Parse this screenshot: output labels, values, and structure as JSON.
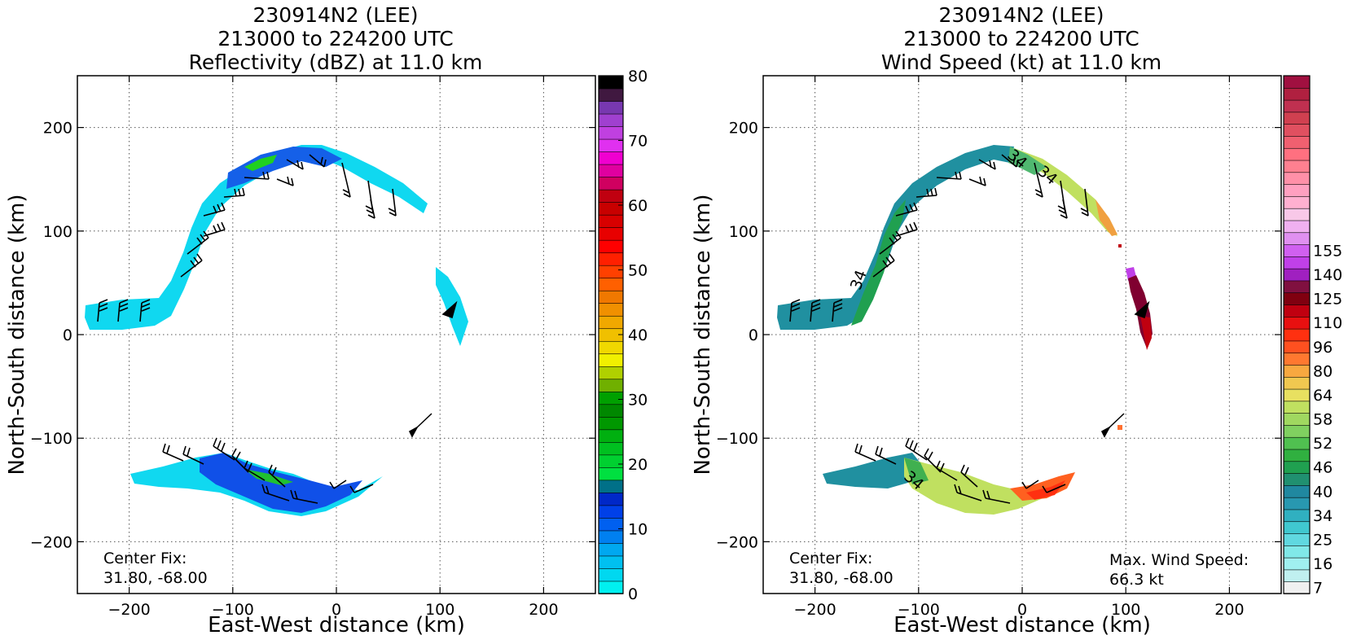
{
  "chart_data": [
    {
      "type": "heatmap",
      "title_lines": [
        "230914N2 (LEE)",
        "213000 to 224200 UTC",
        "Reflectivity (dBZ) at 11.0 km"
      ],
      "xlabel": "East-West distance (km)",
      "ylabel": "North-South distance (km)",
      "xlim": [
        -250,
        250
      ],
      "ylim": [
        -250,
        250
      ],
      "xticks": [
        -200,
        -100,
        0,
        100,
        200
      ],
      "yticks": [
        -200,
        -100,
        0,
        100,
        200
      ],
      "xtick_labels": [
        "−200",
        "−100",
        "0",
        "100",
        "200"
      ],
      "ytick_labels": [
        "−200",
        "−100",
        "0",
        "100",
        "200"
      ],
      "grid": "dotted",
      "annotation_lines": [
        "Center Fix:",
        "31.80, -68.00"
      ],
      "colorbar": {
        "min": 0,
        "max": 80,
        "ticks": [
          0,
          10,
          20,
          30,
          40,
          50,
          60,
          70,
          80
        ],
        "tick_labels": [
          "0",
          "10",
          "20",
          "30",
          "40",
          "50",
          "60",
          "70",
          "80"
        ],
        "colors": [
          "#00f0f0",
          "#00d8f0",
          "#00c0f0",
          "#00a8f0",
          "#0080f0",
          "#0060f0",
          "#0040e8",
          "#0028c8",
          "#007088",
          "#00e040",
          "#00d030",
          "#00c020",
          "#00b010",
          "#009800",
          "#008800",
          "#00a000",
          "#70b000",
          "#b0d000",
          "#f0f000",
          "#f0d800",
          "#f0c000",
          "#f0a800",
          "#f09000",
          "#f07800",
          "#ff6000",
          "#ff4000",
          "#ff2000",
          "#ff0000",
          "#e80000",
          "#d80000",
          "#c80000",
          "#c00010",
          "#d00060",
          "#e000a0",
          "#f000d0",
          "#e030f0",
          "#c040e0",
          "#a040d0",
          "#7838b0",
          "#401840",
          "#000000"
        ]
      },
      "wind_barbs": true
    },
    {
      "type": "heatmap",
      "title_lines": [
        "230914N2 (LEE)",
        "213000 to 224200 UTC",
        "Wind Speed (kt) at 11.0 km"
      ],
      "xlabel": "East-West distance (km)",
      "ylabel": "North-South distance (km)",
      "xlim": [
        -250,
        250
      ],
      "ylim": [
        -250,
        250
      ],
      "xticks": [
        -200,
        -100,
        0,
        100,
        200
      ],
      "yticks": [
        -200,
        -100,
        0,
        100,
        200
      ],
      "xtick_labels": [
        "−200",
        "−100",
        "0",
        "100",
        "200"
      ],
      "ytick_labels": [
        "−200",
        "−100",
        "0",
        "100",
        "200"
      ],
      "grid": "dotted",
      "annotation_lines": [
        "Center Fix:",
        "31.80, -68.00"
      ],
      "max_annotation_lines": [
        "Max. Wind Speed:",
        "66.3 kt"
      ],
      "contour_label": "34",
      "colorbar": {
        "tick_labels": [
          "7",
          "16",
          "25",
          "34",
          "40",
          "46",
          "52",
          "58",
          "64",
          "80",
          "96",
          "110",
          "125",
          "140",
          "155"
        ],
        "label_steps": [
          0,
          2,
          4,
          6,
          8,
          10,
          12,
          14,
          16,
          18,
          20,
          22,
          24,
          26,
          28
        ],
        "colors": [
          "#f0f0f0",
          "#c0f0f0",
          "#a0f0f0",
          "#80e8e8",
          "#60d8e0",
          "#40c8d0",
          "#30b0c0",
          "#2898b0",
          "#2088a0",
          "#209070",
          "#20a050",
          "#30b040",
          "#50c050",
          "#80d060",
          "#a0d860",
          "#c0e060",
          "#e8e060",
          "#f0c850",
          "#f8a840",
          "#ff7830",
          "#ff5020",
          "#ff3010",
          "#e81010",
          "#c00010",
          "#800010",
          "#801040",
          "#a020c0",
          "#c040e8",
          "#d060f0",
          "#e090f0",
          "#f0b0f0",
          "#f8c8e8",
          "#ffb0d0",
          "#ffa0c0",
          "#ff90a8",
          "#ff8090",
          "#ff7080",
          "#f06070",
          "#e05060",
          "#d04050",
          "#c03050",
          "#b02040",
          "#a01040"
        ]
      },
      "wind_barbs": true
    }
  ]
}
